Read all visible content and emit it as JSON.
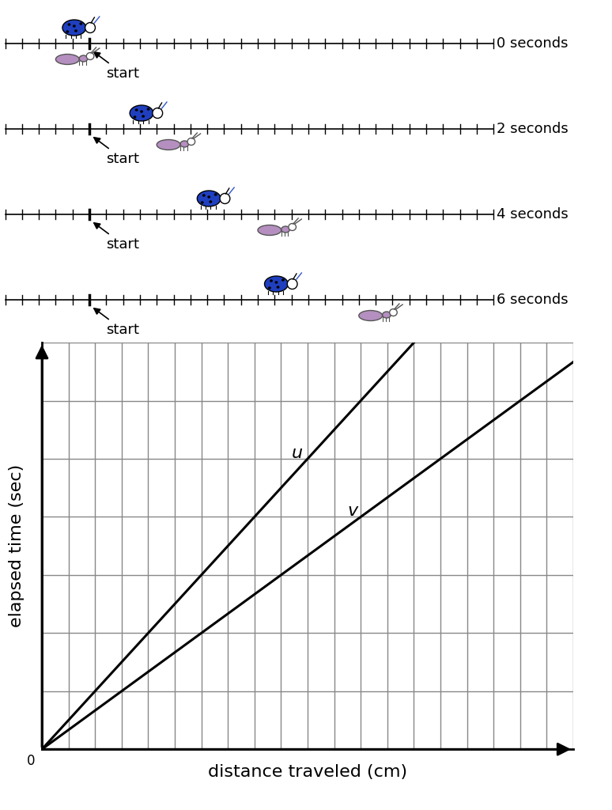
{
  "number_lines": {
    "tick_min": -5,
    "tick_max": 24,
    "start": 0,
    "start_label": "start",
    "rows": [
      {
        "label": "0 seconds",
        "ladybug": 0,
        "ant": 0
      },
      {
        "label": "2 seconds",
        "ladybug": 4,
        "ant": 6
      },
      {
        "label": "4 seconds",
        "ladybug": 8,
        "ant": 12
      },
      {
        "label": "6 seconds",
        "ladybug": 12,
        "ant": 18
      }
    ]
  },
  "chart_data": {
    "type": "line",
    "xlabel": "distance traveled (cm)",
    "ylabel": "elapsed time (sec)",
    "xlim": [
      0,
      20
    ],
    "ylim": [
      0,
      7
    ],
    "xticks": [
      0,
      1,
      2,
      3,
      4,
      5,
      6,
      7,
      8,
      9,
      10,
      11,
      12,
      13,
      14,
      15,
      16,
      17,
      18,
      19,
      20
    ],
    "yticks": [
      0,
      1,
      2,
      3,
      4,
      5,
      6,
      7
    ],
    "grid": true,
    "tick_labels": false,
    "annotations": [
      {
        "text": "0",
        "x": 0,
        "y": 0
      }
    ],
    "series": [
      {
        "name": "u",
        "color": "#000000",
        "x": [
          0,
          14
        ],
        "values": [
          0,
          7
        ],
        "label_x": 9.6,
        "label_y": 5.1
      },
      {
        "name": "v",
        "color": "#000000",
        "x": [
          0,
          21
        ],
        "values": [
          0,
          7
        ],
        "label_x": 11.7,
        "label_y": 4.1
      }
    ]
  }
}
